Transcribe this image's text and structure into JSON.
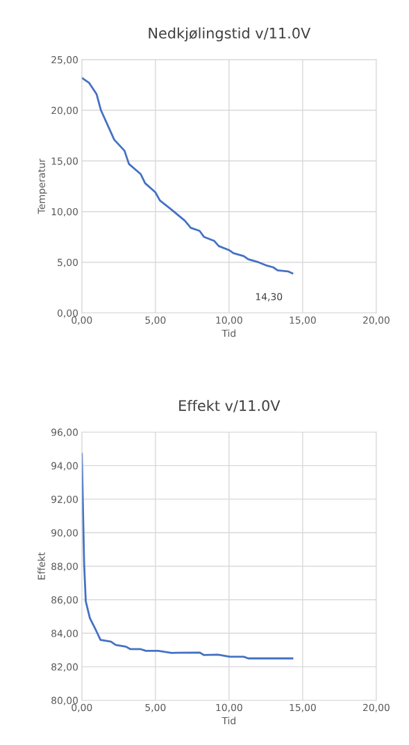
{
  "chart_data": [
    {
      "type": "line",
      "title": "Nedkjølingstid v/11.0V",
      "xlabel": "Tid",
      "ylabel": "Temperatur",
      "grid": true,
      "legend": false,
      "series": [
        {
          "color": "#4472c4",
          "x": [
            0,
            0.5,
            1.0,
            1.3,
            2.2,
            2.9,
            3.2,
            4.0,
            4.3,
            5.0,
            5.3,
            6.0,
            6.5,
            7.0,
            7.4,
            8.0,
            8.3,
            9.0,
            9.3,
            10.0,
            10.3,
            11.0,
            11.3,
            12.0,
            12.5,
            13.0,
            13.3,
            14.0,
            14.3
          ],
          "values": [
            23.2,
            22.7,
            21.6,
            20.0,
            17.1,
            16.0,
            14.7,
            13.7,
            12.8,
            11.9,
            11.1,
            10.3,
            9.7,
            9.1,
            8.4,
            8.1,
            7.5,
            7.1,
            6.6,
            6.2,
            5.9,
            5.6,
            5.3,
            5.0,
            4.7,
            4.5,
            4.2,
            4.1,
            3.9
          ]
        }
      ],
      "annotations": [
        {
          "text": "14,30",
          "x": 14.3,
          "y": 3.9
        }
      ],
      "xlim": [
        0,
        20
      ],
      "xticks": [
        {
          "value": 0,
          "label": "0,00"
        },
        {
          "value": 5,
          "label": "5,00"
        },
        {
          "value": 10,
          "label": "10,00"
        },
        {
          "value": 15,
          "label": "15,00"
        },
        {
          "value": 20,
          "label": "20,00"
        }
      ],
      "ylim": [
        0,
        25
      ],
      "yticks": [
        {
          "value": 0,
          "label": "0,00"
        },
        {
          "value": 5,
          "label": "5,00"
        },
        {
          "value": 10,
          "label": "10,00"
        },
        {
          "value": 15,
          "label": "15,00"
        },
        {
          "value": 20,
          "label": "20,00"
        },
        {
          "value": 25,
          "label": "25,00"
        }
      ]
    },
    {
      "type": "line",
      "title": "Effekt v/11.0V",
      "xlabel": "Tid",
      "ylabel": "Effekt",
      "grid": true,
      "legend": false,
      "series": [
        {
          "color": "#4472c4",
          "x": [
            0,
            0.16,
            0.27,
            0.55,
            0.95,
            1.27,
            1.98,
            2.3,
            3.0,
            3.3,
            4.0,
            4.35,
            5.2,
            6.1,
            8.0,
            8.3,
            9.25,
            10.05,
            11.0,
            11.3,
            14.3
          ],
          "values": [
            94.7,
            88.1,
            85.9,
            84.9,
            84.2,
            83.6,
            83.5,
            83.3,
            83.2,
            83.05,
            83.05,
            82.95,
            82.95,
            82.83,
            82.85,
            82.7,
            82.72,
            82.6,
            82.6,
            82.5,
            82.5
          ]
        }
      ],
      "xlim": [
        0,
        20
      ],
      "xticks": [
        {
          "value": 0,
          "label": "0,00"
        },
        {
          "value": 5,
          "label": "5,00"
        },
        {
          "value": 10,
          "label": "10,00"
        },
        {
          "value": 15,
          "label": "15,00"
        },
        {
          "value": 20,
          "label": "20,00"
        }
      ],
      "ylim": [
        80,
        96
      ],
      "yticks": [
        {
          "value": 80,
          "label": "80,00"
        },
        {
          "value": 82,
          "label": "82,00"
        },
        {
          "value": 84,
          "label": "84,00"
        },
        {
          "value": 86,
          "label": "86,00"
        },
        {
          "value": 88,
          "label": "88,00"
        },
        {
          "value": 90,
          "label": "90,00"
        },
        {
          "value": 92,
          "label": "92,00"
        },
        {
          "value": 94,
          "label": "94,00"
        },
        {
          "value": 96,
          "label": "96,00"
        }
      ]
    }
  ]
}
